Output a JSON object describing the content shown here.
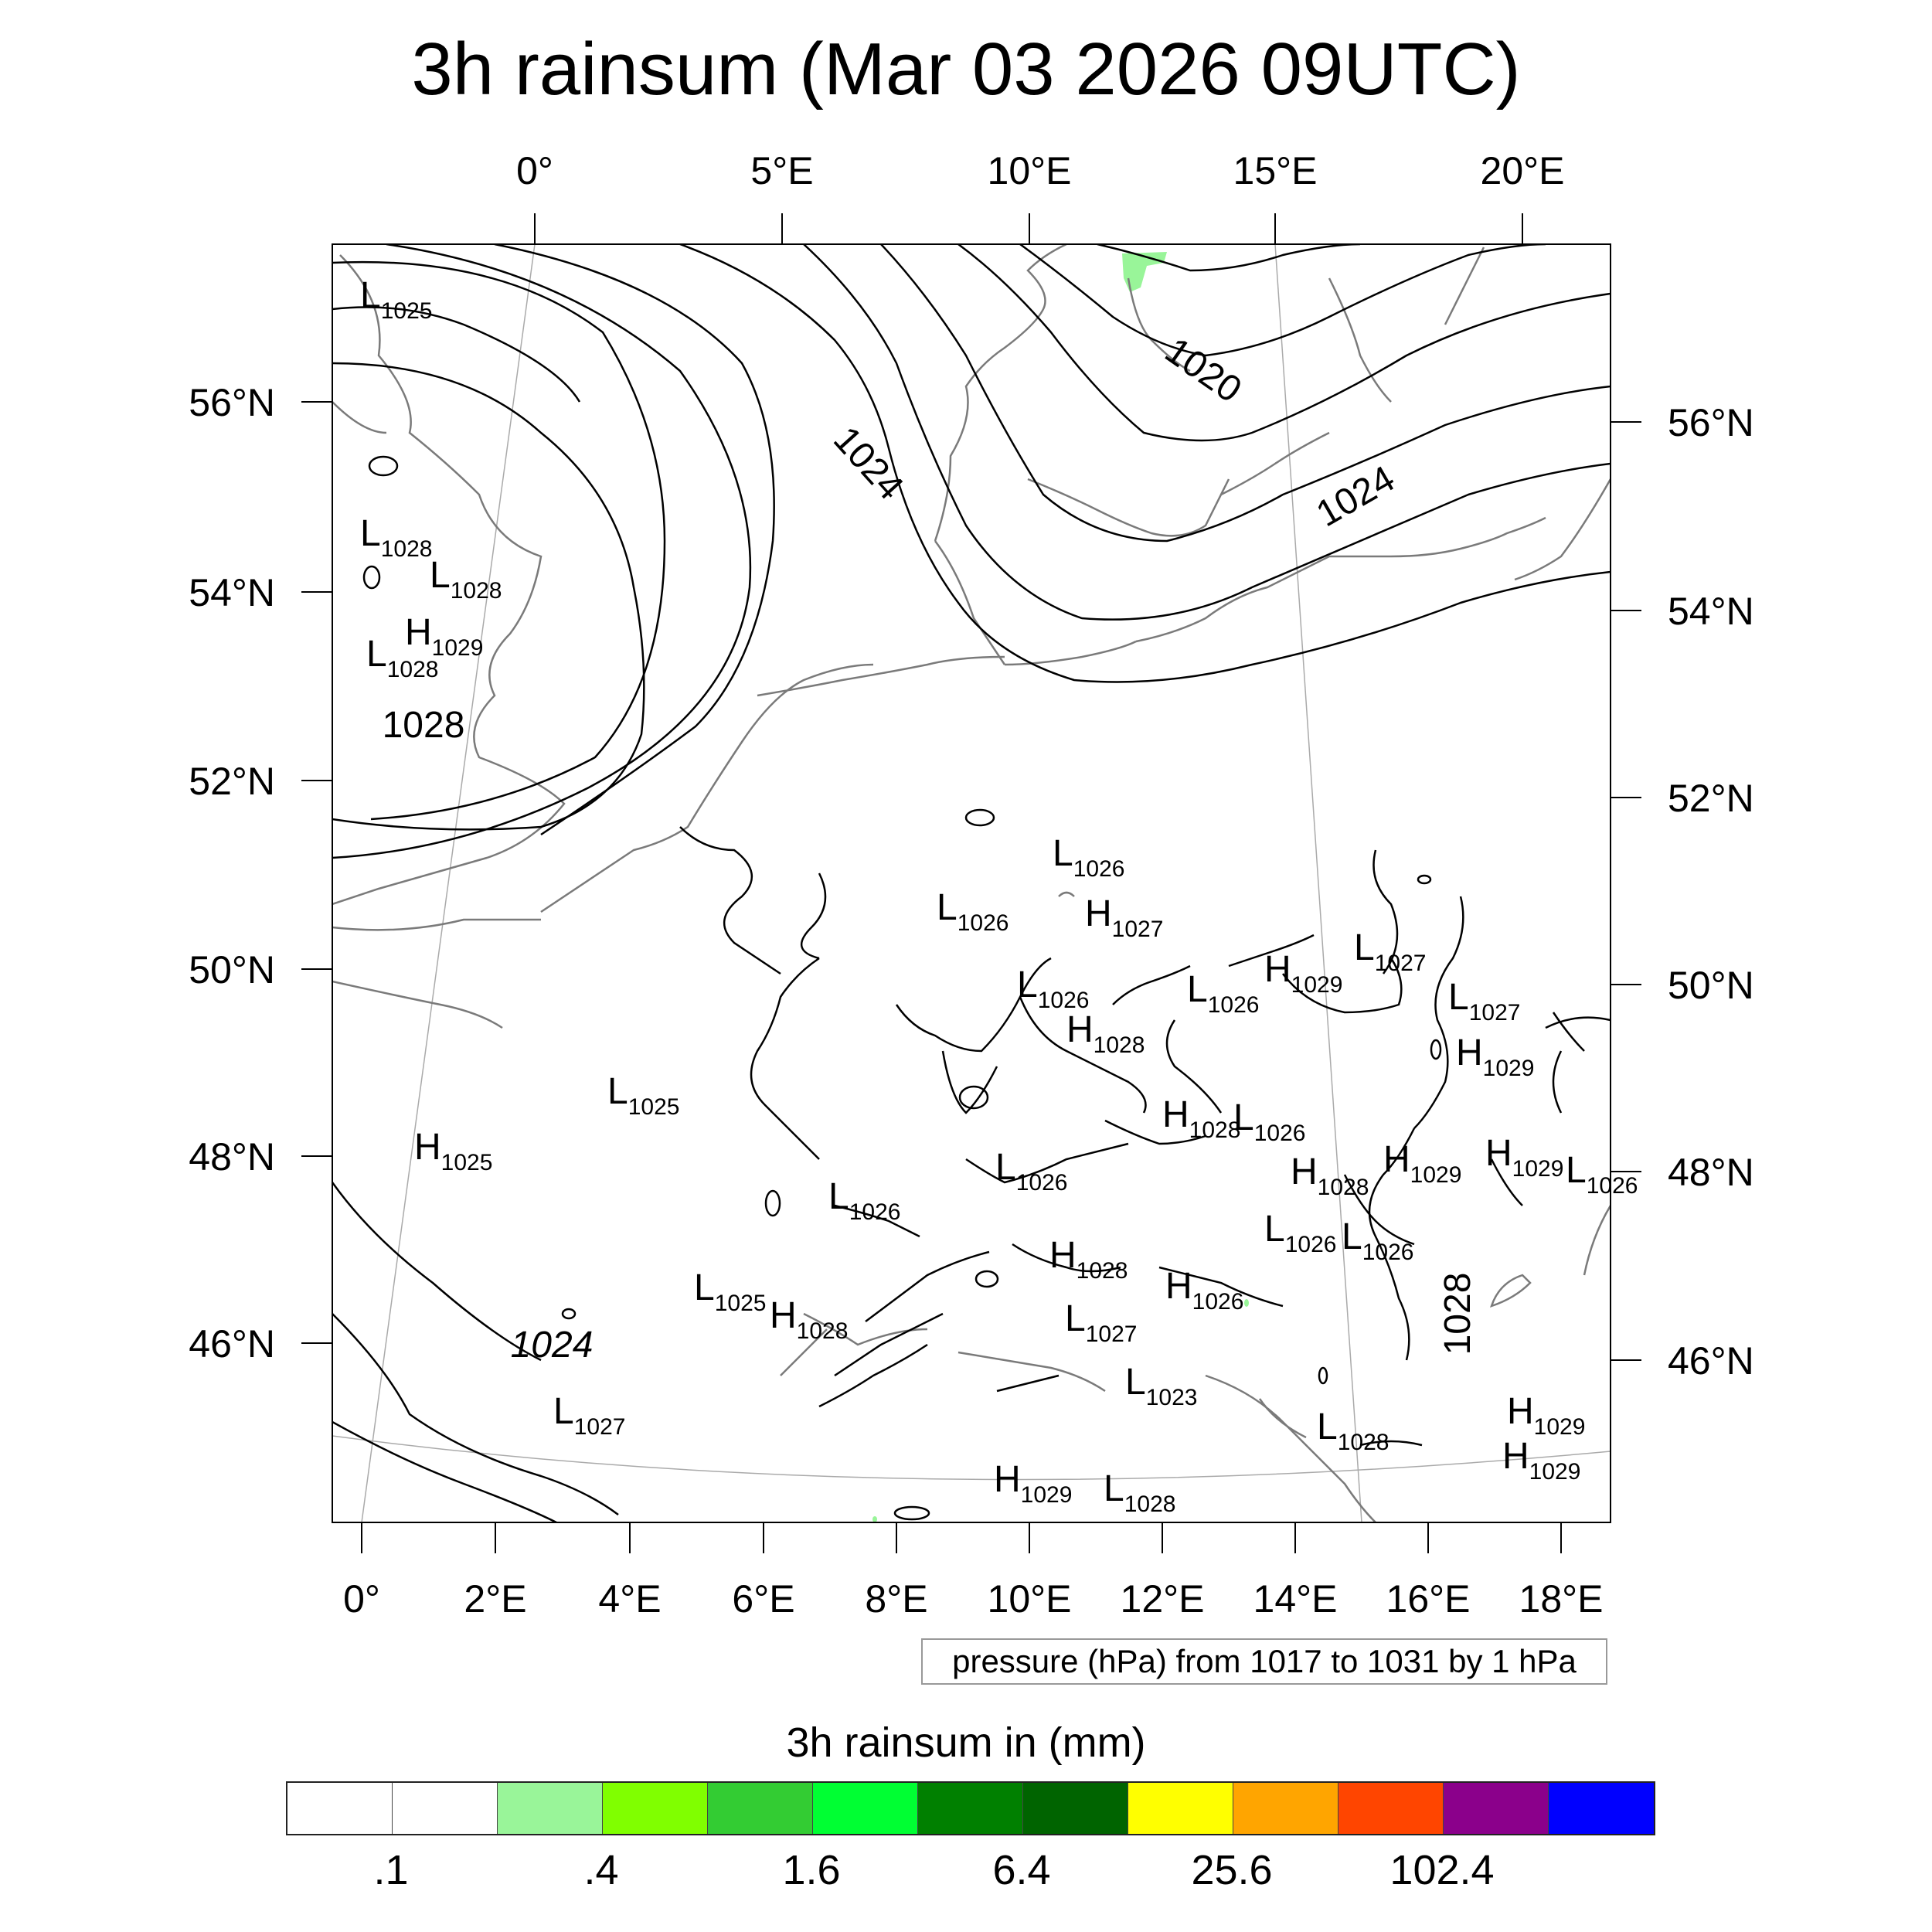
{
  "title": "3h rainsum (Mar 03 2026 09UTC)",
  "top_lon_labels": [
    "0°",
    "5°E",
    "10°E",
    "15°E",
    "20°E"
  ],
  "bottom_lon_labels": [
    "0°",
    "2°E",
    "4°E",
    "6°E",
    "8°E",
    "10°E",
    "12°E",
    "14°E",
    "16°E",
    "18°E"
  ],
  "left_lat_labels": [
    "56°N",
    "54°N",
    "52°N",
    "50°N",
    "48°N",
    "46°N"
  ],
  "right_lat_labels": [
    "56°N",
    "54°N",
    "52°N",
    "50°N",
    "48°N",
    "46°N"
  ],
  "contour_info": "pressure (hPa) from 1017 to 1031 by 1 hPa",
  "isobar_labels": [
    "1020",
    "1024",
    "1024",
    "1028",
    "1024",
    "1028"
  ],
  "pressure_centers": [
    {
      "t": "L",
      "v": "1025"
    },
    {
      "t": "L",
      "v": "1028"
    },
    {
      "t": "L",
      "v": "1028"
    },
    {
      "t": "H",
      "v": "1029"
    },
    {
      "t": "L",
      "v": "1028"
    },
    {
      "t": "L",
      "v": "1026"
    },
    {
      "t": "L",
      "v": "1026"
    },
    {
      "t": "H",
      "v": "1027"
    },
    {
      "t": "L",
      "v": "1027"
    },
    {
      "t": "H",
      "v": "1029"
    },
    {
      "t": "L",
      "v": "1026"
    },
    {
      "t": "L",
      "v": "1026"
    },
    {
      "t": "L",
      "v": "1027"
    },
    {
      "t": "H",
      "v": "1028"
    },
    {
      "t": "H",
      "v": "1029"
    },
    {
      "t": "L",
      "v": "1025"
    },
    {
      "t": "H",
      "v": "1025"
    },
    {
      "t": "H",
      "v": "1028"
    },
    {
      "t": "L",
      "v": "1026"
    },
    {
      "t": "L",
      "v": "1026"
    },
    {
      "t": "H",
      "v": "1028"
    },
    {
      "t": "H",
      "v": "1029"
    },
    {
      "t": "H",
      "v": "1029"
    },
    {
      "t": "L",
      "v": "1026"
    },
    {
      "t": "L",
      "v": "1026"
    },
    {
      "t": "L",
      "v": "1026"
    },
    {
      "t": "L",
      "v": "1026"
    },
    {
      "t": "H",
      "v": "1028"
    },
    {
      "t": "H",
      "v": "1026"
    },
    {
      "t": "L",
      "v": "1025"
    },
    {
      "t": "H",
      "v": "1028"
    },
    {
      "t": "L",
      "v": "1027"
    },
    {
      "t": "L",
      "v": "1023"
    },
    {
      "t": "L",
      "v": "1027"
    },
    {
      "t": "L",
      "v": "1028"
    },
    {
      "t": "H",
      "v": "1029"
    },
    {
      "t": "H",
      "v": "1029"
    },
    {
      "t": "H",
      "v": "1029"
    },
    {
      "t": "L",
      "v": "1028"
    }
  ],
  "colorbar": {
    "title": "3h rainsum in (mm)",
    "colors": [
      "#ffffff",
      "#ffffff",
      "#99f599",
      "#80ff00",
      "#33cc33",
      "#00ff33",
      "#008000",
      "#006400",
      "#ffff00",
      "#ffa500",
      "#ff4500",
      "#8b008b",
      "#0000ff"
    ],
    "tick_labels": [
      ".1",
      ".4",
      "1.6",
      "6.4",
      "25.6",
      "102.4"
    ],
    "tick_after_box": [
      1,
      3,
      5,
      7,
      9,
      11
    ]
  }
}
